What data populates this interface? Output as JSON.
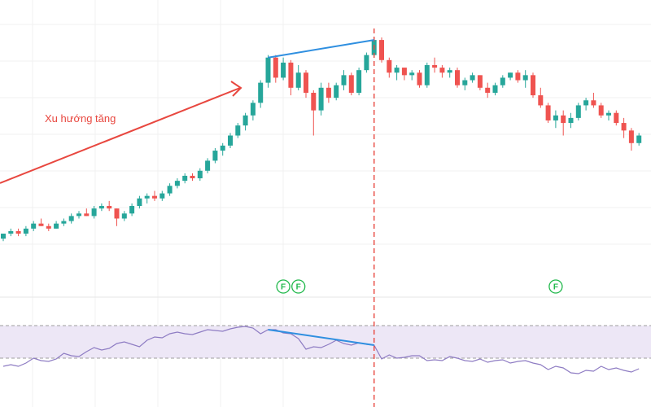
{
  "colors": {
    "up": "#26a69a",
    "down": "#ef5350",
    "trend_arrow": "#e8473f",
    "divergence": "#2f8fe0",
    "vline": "#e8473f",
    "rsi": "#8e7cc3",
    "rsi_band": "#ede7f6",
    "grid": "#f0f0f0",
    "marker": "#1fb84a"
  },
  "annotation": {
    "trend_text": "Xu hướng tăng"
  },
  "markers": [
    {
      "label": "F",
      "x": 37
    },
    {
      "label": "F",
      "x": 39
    },
    {
      "label": "F",
      "x": 73
    }
  ],
  "chart_data": {
    "type": "candlestick",
    "ylim": [
      0,
      100
    ],
    "rsi_ylim": [
      0,
      100
    ],
    "rsi_bands": [
      30,
      70
    ],
    "grid": true,
    "divergence": {
      "price": [
        [
          35,
          92
        ],
        [
          49,
          99
        ]
      ],
      "rsi": [
        [
          35,
          65
        ],
        [
          49,
          46
        ]
      ]
    },
    "vline_x": 49,
    "candles": [
      [
        20,
        22,
        19,
        22
      ],
      [
        22,
        24,
        21,
        23
      ],
      [
        23,
        24,
        21,
        22
      ],
      [
        22,
        25,
        21,
        24
      ],
      [
        24,
        27,
        23,
        26
      ],
      [
        26,
        28,
        25,
        25
      ],
      [
        25,
        26,
        23,
        24
      ],
      [
        24,
        27,
        24,
        26
      ],
      [
        26,
        28,
        25,
        27
      ],
      [
        27,
        30,
        26,
        29
      ],
      [
        29,
        31,
        28,
        30
      ],
      [
        30,
        32,
        29,
        29
      ],
      [
        29,
        33,
        28,
        32
      ],
      [
        32,
        34,
        31,
        33
      ],
      [
        33,
        35,
        31,
        32
      ],
      [
        32,
        32,
        25,
        28
      ],
      [
        28,
        31,
        27,
        30
      ],
      [
        30,
        34,
        29,
        33
      ],
      [
        33,
        37,
        32,
        36
      ],
      [
        36,
        38,
        34,
        37
      ],
      [
        37,
        39,
        35,
        36
      ],
      [
        36,
        39,
        35,
        38
      ],
      [
        38,
        42,
        37,
        41
      ],
      [
        41,
        44,
        40,
        43
      ],
      [
        43,
        46,
        42,
        45
      ],
      [
        45,
        46,
        43,
        44
      ],
      [
        44,
        48,
        43,
        47
      ],
      [
        47,
        52,
        46,
        51
      ],
      [
        51,
        56,
        50,
        55
      ],
      [
        55,
        58,
        53,
        57
      ],
      [
        57,
        62,
        56,
        61
      ],
      [
        61,
        66,
        60,
        65
      ],
      [
        65,
        70,
        63,
        69
      ],
      [
        69,
        75,
        67,
        74
      ],
      [
        74,
        83,
        72,
        82
      ],
      [
        82,
        93,
        80,
        92
      ],
      [
        92,
        93,
        82,
        84
      ],
      [
        84,
        92,
        83,
        90
      ],
      [
        90,
        91,
        77,
        80
      ],
      [
        80,
        89,
        79,
        86
      ],
      [
        86,
        87,
        76,
        78
      ],
      [
        78,
        79,
        61,
        71
      ],
      [
        71,
        82,
        69,
        80
      ],
      [
        80,
        82,
        74,
        76
      ],
      [
        76,
        82,
        75,
        81
      ],
      [
        81,
        87,
        79,
        85
      ],
      [
        85,
        86,
        77,
        78
      ],
      [
        78,
        88,
        77,
        87
      ],
      [
        87,
        94,
        86,
        93
      ],
      [
        93,
        100,
        92,
        99
      ],
      [
        99,
        100,
        90,
        91
      ],
      [
        91,
        92,
        84,
        86
      ],
      [
        86,
        89,
        83,
        88
      ],
      [
        88,
        88,
        83,
        85
      ],
      [
        85,
        87,
        83,
        86
      ],
      [
        86,
        87,
        80,
        81
      ],
      [
        81,
        90,
        80,
        89
      ],
      [
        89,
        92,
        86,
        88
      ],
      [
        88,
        89,
        84,
        86
      ],
      [
        86,
        88,
        84,
        87
      ],
      [
        87,
        88,
        80,
        81
      ],
      [
        81,
        84,
        79,
        83
      ],
      [
        83,
        86,
        82,
        85
      ],
      [
        85,
        85,
        79,
        80
      ],
      [
        80,
        82,
        76,
        78
      ],
      [
        78,
        82,
        77,
        81
      ],
      [
        81,
        85,
        80,
        84
      ],
      [
        84,
        86,
        83,
        86
      ],
      [
        86,
        87,
        82,
        83
      ],
      [
        83,
        87,
        80,
        85
      ],
      [
        85,
        86,
        76,
        77
      ],
      [
        77,
        80,
        72,
        73
      ],
      [
        73,
        74,
        66,
        67
      ],
      [
        67,
        71,
        64,
        69
      ],
      [
        69,
        71,
        61,
        66
      ],
      [
        66,
        70,
        64,
        68
      ],
      [
        68,
        74,
        67,
        73
      ],
      [
        73,
        76,
        71,
        75
      ],
      [
        75,
        78,
        72,
        73
      ],
      [
        73,
        74,
        68,
        69
      ],
      [
        69,
        71,
        67,
        70
      ],
      [
        70,
        71,
        65,
        66
      ],
      [
        66,
        68,
        60,
        63
      ],
      [
        63,
        64,
        55,
        58
      ],
      [
        58,
        62,
        57,
        61
      ]
    ],
    "rsi": [
      20,
      22,
      20,
      24,
      30,
      27,
      26,
      29,
      36,
      33,
      32,
      38,
      43,
      40,
      42,
      48,
      50,
      47,
      44,
      52,
      56,
      55,
      60,
      62,
      60,
      59,
      62,
      65,
      64,
      63,
      66,
      68,
      69,
      67,
      60,
      65,
      65,
      61,
      60,
      54,
      41,
      44,
      43,
      47,
      52,
      48,
      46,
      49,
      47,
      46,
      29,
      34,
      30,
      31,
      33,
      33,
      27,
      28,
      27,
      32,
      30,
      27,
      26,
      29,
      25,
      27,
      28,
      24,
      26,
      27,
      24,
      22,
      16,
      20,
      18,
      12,
      11,
      15,
      14,
      20,
      16,
      18,
      15,
      13,
      17
    ]
  }
}
